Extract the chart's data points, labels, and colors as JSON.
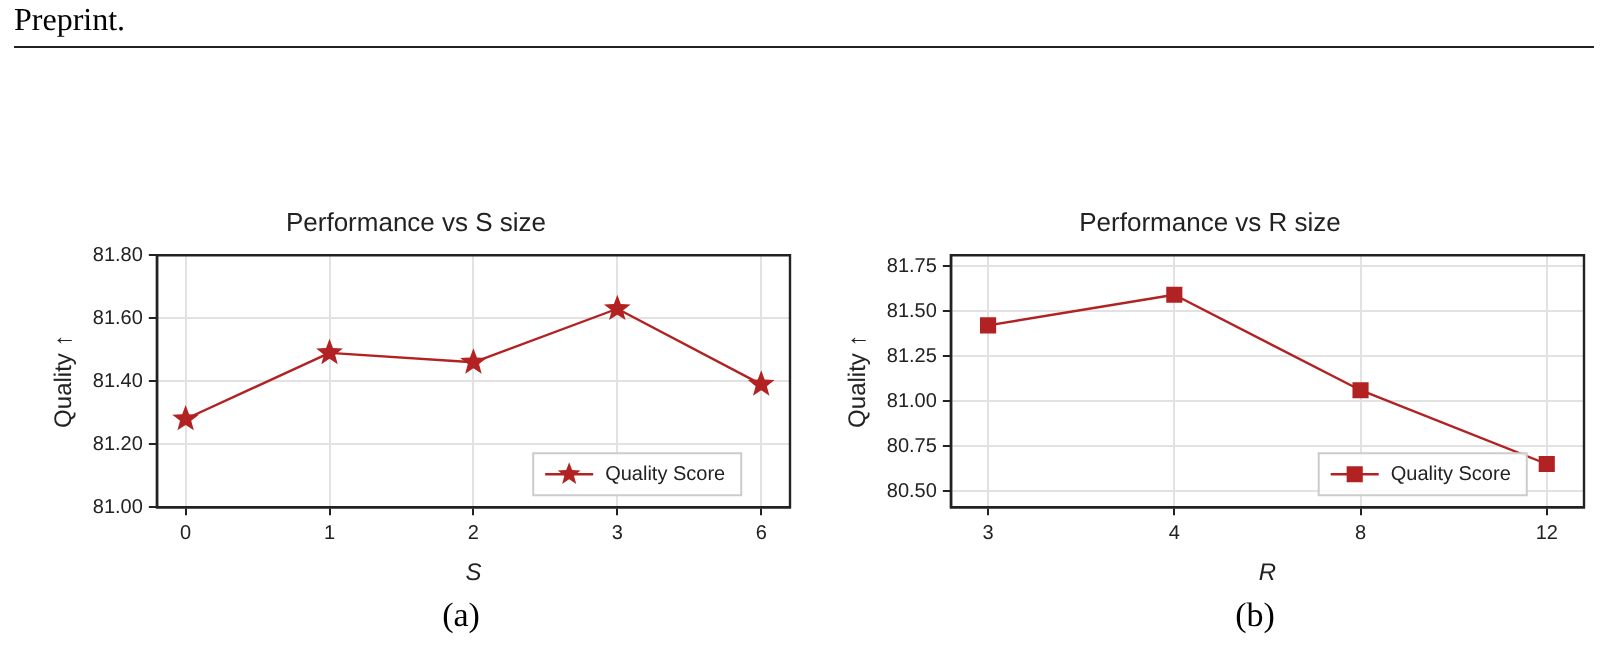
{
  "chart_data": [
    {
      "type": "line",
      "title": "Performance vs S size",
      "xlabel": "S",
      "ylabel": "Quality ↑",
      "annotations": [
        "Preprint.",
        "(a)"
      ],
      "categories": [
        "0",
        "1",
        "2",
        "3",
        "6"
      ],
      "series": [
        {
          "name": "Quality Score",
          "color": "#b22222",
          "values": [
            81.28,
            81.49,
            81.46,
            81.63,
            81.39
          ]
        }
      ],
      "ylim": [
        81.0,
        81.8
      ],
      "yticks": [
        {
          "value": 81.0,
          "label": "81.00"
        },
        {
          "value": 81.2,
          "label": "81.20"
        },
        {
          "value": 81.4,
          "label": "81.40"
        },
        {
          "value": 81.6,
          "label": "81.60"
        },
        {
          "value": 81.8,
          "label": "81.80"
        }
      ],
      "grid": true,
      "legend": "bottom right",
      "marker": "star",
      "line_style": "solid"
    },
    {
      "type": "line",
      "title": "Performance vs R size",
      "xlabel": "R",
      "ylabel": "Quality ↑",
      "annotations": [
        "(b)"
      ],
      "categories": [
        "3",
        "4",
        "8",
        "12"
      ],
      "series": [
        {
          "name": "Quality Score",
          "color": "#b22222",
          "values": [
            81.42,
            81.59,
            81.06,
            80.65
          ]
        }
      ],
      "ylim": [
        80.41,
        81.81
      ],
      "yticks": [
        {
          "value": 80.5,
          "label": "80.50"
        },
        {
          "value": 80.75,
          "label": "80.75"
        },
        {
          "value": 81.0,
          "label": "81.00"
        },
        {
          "value": 81.25,
          "label": "81.25"
        },
        {
          "value": 81.5,
          "label": "81.50"
        },
        {
          "value": 81.75,
          "label": "81.75"
        }
      ],
      "grid": true,
      "legend": "bottom right",
      "marker": "square",
      "line_style": "solid"
    }
  ]
}
